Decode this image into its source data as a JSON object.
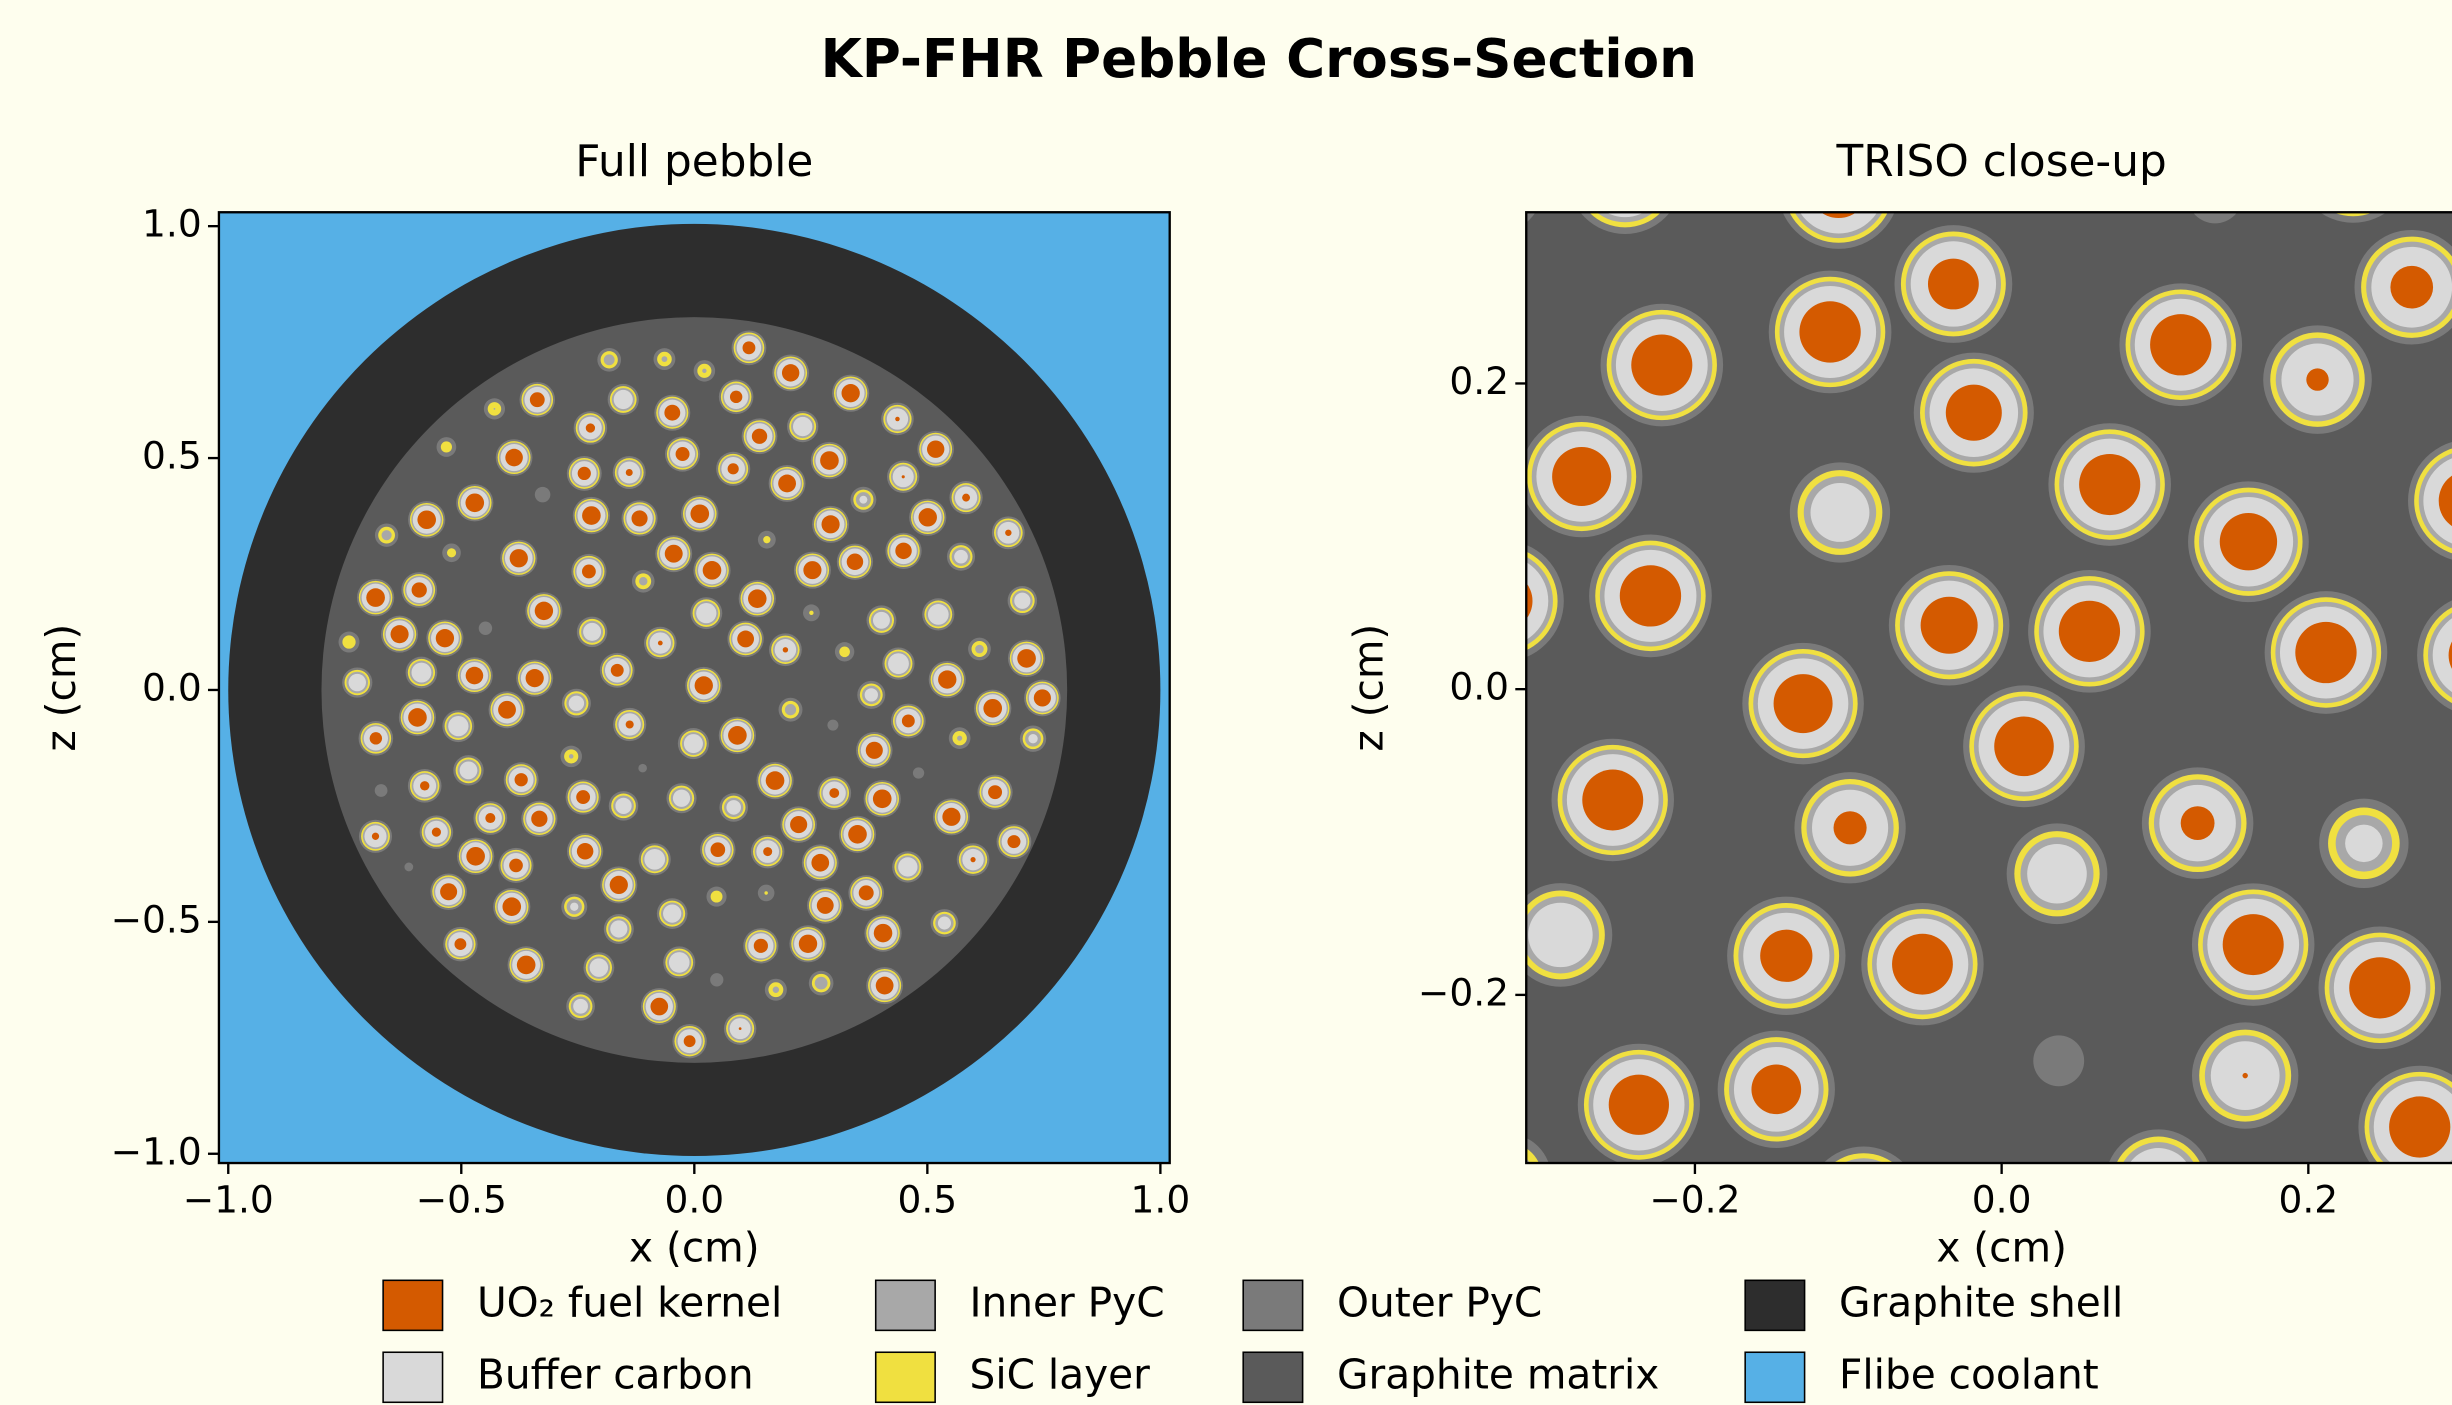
{
  "title": "KP-FHR Pebble Cross-Section",
  "legend": [
    {
      "name": "UO₂ fuel kernel",
      "color": "#d45a00"
    },
    {
      "name": "Buffer carbon",
      "color": "#d9d9d9"
    },
    {
      "name": "Inner PyC",
      "color": "#a8a8a8"
    },
    {
      "name": "SiC layer",
      "color": "#f0e040"
    },
    {
      "name": "Outer PyC",
      "color": "#7a7a7a"
    },
    {
      "name": "Graphite matrix",
      "color": "#5a5a5a"
    },
    {
      "name": "Graphite shell",
      "color": "#2d2d2d"
    },
    {
      "name": "Flibe coolant",
      "color": "#56b0e6"
    }
  ],
  "chart_data": [
    {
      "type": "image",
      "title": "Full pebble",
      "xlabel": "x (cm)",
      "ylabel": "z (cm)",
      "xlim": [
        -1.02,
        1.02
      ],
      "ylim": [
        -1.02,
        1.03
      ],
      "xticks": [
        {
          "value": -1.0,
          "label": "−1.0"
        },
        {
          "value": -0.5,
          "label": "−0.5"
        },
        {
          "value": 0.0,
          "label": "0.0"
        },
        {
          "value": 0.5,
          "label": "0.5"
        },
        {
          "value": 1.0,
          "label": "1.0"
        }
      ],
      "yticks": [
        {
          "value": -1.0,
          "label": "−1.0"
        },
        {
          "value": -0.5,
          "label": "−0.5"
        },
        {
          "value": 0.0,
          "label": "0.0"
        },
        {
          "value": 0.5,
          "label": "0.5"
        },
        {
          "value": 1.0,
          "label": "1.0"
        }
      ]
    },
    {
      "type": "image",
      "title": "TRISO close-up",
      "xlabel": "x (cm)",
      "ylabel": "z (cm)",
      "xlim": [
        -0.31,
        0.31
      ],
      "ylim": [
        -0.31,
        0.312
      ],
      "xticks": [
        {
          "value": -0.2,
          "label": "−0.2"
        },
        {
          "value": 0.0,
          "label": "0.0"
        },
        {
          "value": 0.2,
          "label": "0.2"
        }
      ],
      "yticks": [
        {
          "value": -0.2,
          "label": "−0.2"
        },
        {
          "value": 0.0,
          "label": "0.0"
        },
        {
          "value": 0.2,
          "label": "0.2"
        }
      ]
    }
  ]
}
